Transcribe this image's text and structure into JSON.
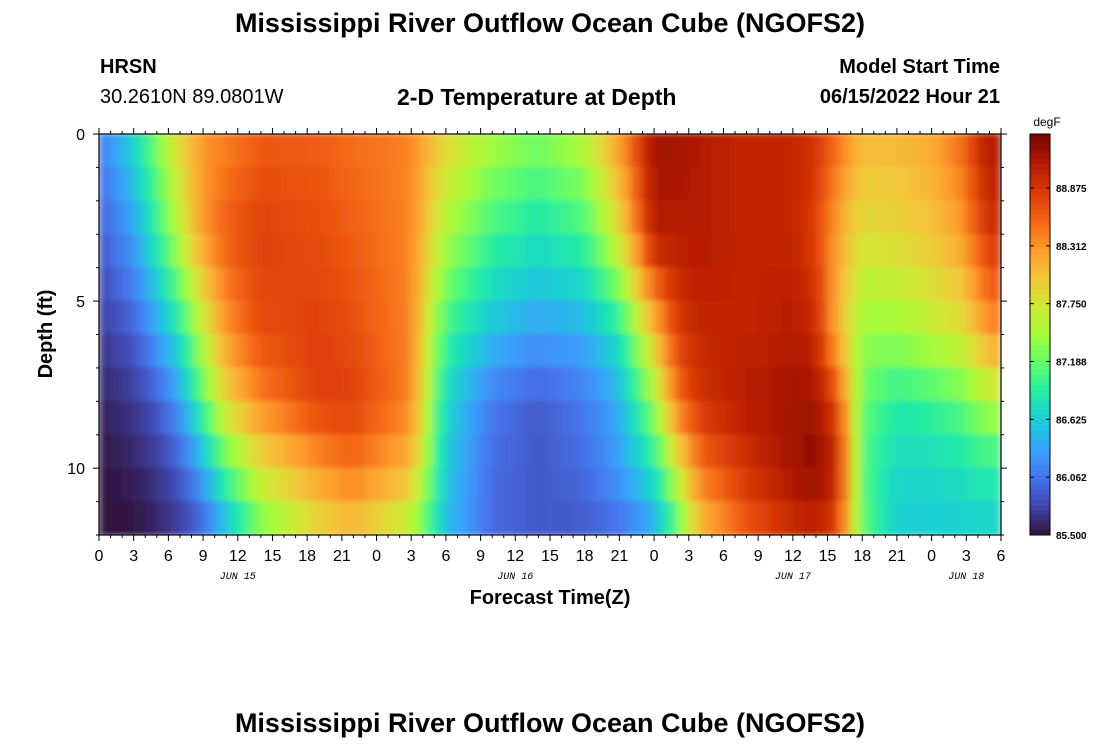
{
  "header": {
    "title": "Mississippi River Outflow Ocean Cube (NGOFS2)",
    "station_name": "HRSN",
    "station_coords": "30.2610N  89.0801W",
    "subtitle": "2-D Temperature at Depth",
    "model_start_label": "Model Start Time",
    "model_start_value": "06/15/2022 Hour 21"
  },
  "footer": {
    "title": "Mississippi River Outflow Ocean Cube (NGOFS2)"
  },
  "chart_data": {
    "type": "heatmap",
    "title": "2-D Temperature at Depth",
    "xlabel": "Forecast Time(Z)",
    "ylabel": "Depth (ft)",
    "units": "degF",
    "xlim": [
      0,
      78
    ],
    "ylim": [
      0,
      12
    ],
    "y_inverted": true,
    "y_ticks": [
      0,
      5,
      10
    ],
    "y_tick_labels": [
      "0",
      "5",
      "10"
    ],
    "x_tick_positions": [
      0,
      3,
      6,
      9,
      12,
      15,
      18,
      21,
      24,
      27,
      30,
      33,
      36,
      39,
      42,
      45,
      48,
      51,
      54,
      57,
      60,
      63,
      66,
      69,
      72,
      75,
      78
    ],
    "x_tick_labels": [
      "0",
      "3",
      "6",
      "9",
      "12",
      "15",
      "18",
      "21",
      "0",
      "3",
      "6",
      "9",
      "12",
      "15",
      "18",
      "21",
      "0",
      "3",
      "6",
      "9",
      "12",
      "15",
      "18",
      "21",
      "0",
      "3",
      "6"
    ],
    "date_labels": [
      {
        "x": 12,
        "text": "JUN 15"
      },
      {
        "x": 36,
        "text": "JUN 16"
      },
      {
        "x": 60,
        "text": "JUN 17"
      },
      {
        "x": 75,
        "text": "JUN 18"
      }
    ],
    "colorbar": {
      "label": "degF",
      "min": 85.5,
      "max": 89.4,
      "ticks": [
        85.5,
        86.062,
        86.625,
        87.188,
        87.75,
        88.312,
        88.875
      ],
      "tick_labels": [
        "85.500",
        "86.062",
        "86.625",
        "87.188",
        "87.750",
        "88.312",
        "88.875"
      ],
      "colors": [
        "#30123b",
        "#4145ab",
        "#4675ed",
        "#39a2fc",
        "#1bcfd4",
        "#24eca6",
        "#61fc6c",
        "#a4fc3b",
        "#d1e834",
        "#f3c63a",
        "#fe9b2d",
        "#f36315",
        "#d93806",
        "#b11901",
        "#7a0403"
      ]
    },
    "x_breakpoints": [
      0,
      3,
      5,
      7,
      9,
      11,
      14,
      19,
      22,
      27,
      30,
      34,
      38,
      42,
      45,
      48,
      50,
      52,
      56,
      60,
      62,
      64,
      66,
      69,
      72,
      75,
      76,
      78
    ],
    "depth_breakpoints": [
      0,
      3,
      6,
      8,
      10,
      12
    ],
    "temperature_grid_degF": [
      [
        86.1,
        86.7,
        87.3,
        87.9,
        88.3,
        88.4,
        88.6,
        88.6,
        88.5,
        88.4,
        87.9,
        87.5,
        87.3,
        87.6,
        88.3,
        89.2,
        89.2,
        89.1,
        89.0,
        89.0,
        88.9,
        88.5,
        88.1,
        88.1,
        88.2,
        88.6,
        89.0,
        89.2
      ],
      [
        85.9,
        86.3,
        86.9,
        87.6,
        88.3,
        88.6,
        88.8,
        88.7,
        88.6,
        88.4,
        87.5,
        87.0,
        86.8,
        87.0,
        87.8,
        89.1,
        89.1,
        89.1,
        89.0,
        89.0,
        88.8,
        88.2,
        87.8,
        87.9,
        88.0,
        88.3,
        88.7,
        89.0
      ],
      [
        85.7,
        85.9,
        86.3,
        86.8,
        87.6,
        88.3,
        88.7,
        88.8,
        88.7,
        88.4,
        87.0,
        86.5,
        86.3,
        86.4,
        86.8,
        88.0,
        88.8,
        89.0,
        89.0,
        89.1,
        89.0,
        88.1,
        87.4,
        87.4,
        87.6,
        87.8,
        88.1,
        88.4
      ],
      [
        85.6,
        85.7,
        85.9,
        86.3,
        87.1,
        87.9,
        88.4,
        88.8,
        88.8,
        88.4,
        86.7,
        86.1,
        85.9,
        86.1,
        86.4,
        87.4,
        88.5,
        88.9,
        89.1,
        89.2,
        89.2,
        88.7,
        87.2,
        86.9,
        87.0,
        87.2,
        87.4,
        87.6
      ],
      [
        85.5,
        85.6,
        85.7,
        85.9,
        86.4,
        87.1,
        87.8,
        88.3,
        88.5,
        88.1,
        86.6,
        86.0,
        85.9,
        86.0,
        86.3,
        86.8,
        87.7,
        88.5,
        88.9,
        89.2,
        89.3,
        89.0,
        87.1,
        86.7,
        86.7,
        86.8,
        86.9,
        86.9
      ],
      [
        85.5,
        85.5,
        85.6,
        85.7,
        85.9,
        86.4,
        87.2,
        87.8,
        88.0,
        87.5,
        86.5,
        86.0,
        85.9,
        85.9,
        86.0,
        86.3,
        87.0,
        88.0,
        88.6,
        88.9,
        89.0,
        88.7,
        87.2,
        86.6,
        86.6,
        86.6,
        86.6,
        86.6
      ]
    ]
  }
}
